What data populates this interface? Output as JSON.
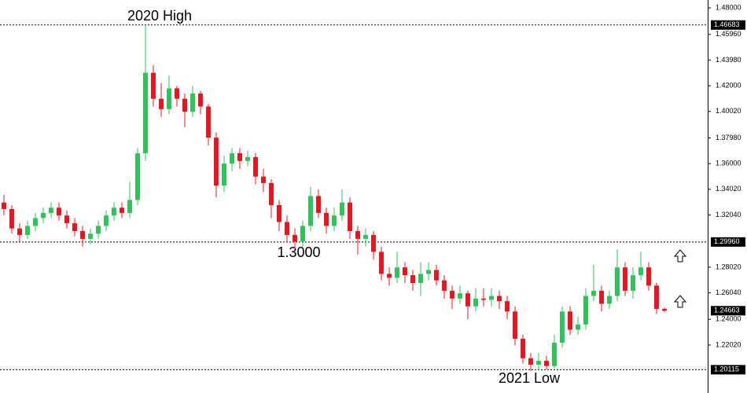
{
  "chart_data": {
    "type": "candlestick",
    "up_color": "#2fc35a",
    "down_color": "#e8141e",
    "ylim": [
      1.1832,
      1.4861
    ],
    "yticks": [
      {
        "value": 1.48,
        "label": "1.48000"
      },
      {
        "value": 1.4596,
        "label": "1.45960"
      },
      {
        "value": 1.4398,
        "label": "1.43980"
      },
      {
        "value": 1.42,
        "label": "1.42000"
      },
      {
        "value": 1.4002,
        "label": "1.40020"
      },
      {
        "value": 1.3798,
        "label": "1.37980"
      },
      {
        "value": 1.36,
        "label": "1.36000"
      },
      {
        "value": 1.3402,
        "label": "1.34020"
      },
      {
        "value": 1.3204,
        "label": "1.32040"
      },
      {
        "value": 1.2802,
        "label": "1.28020"
      },
      {
        "value": 1.2604,
        "label": "1.26040"
      },
      {
        "value": 1.24,
        "label": "1.24000"
      },
      {
        "value": 1.2202,
        "label": "1.22020"
      }
    ],
    "levels": [
      {
        "value": 1.46683,
        "label": "1.46683"
      },
      {
        "value": 1.2996,
        "label": "1.29960"
      },
      {
        "value": 1.20115,
        "label": "1.20115"
      }
    ],
    "last_price": {
      "value": 1.24663,
      "label": "1.24663"
    },
    "annotations": [
      "2020 High",
      "1.3000",
      "2021 Low"
    ],
    "ohlc": [
      [
        1.33,
        1.336,
        1.32,
        1.325
      ],
      [
        1.325,
        1.328,
        1.306,
        1.31
      ],
      [
        1.31,
        1.314,
        1.3,
        1.305
      ],
      [
        1.305,
        1.316,
        1.302,
        1.312
      ],
      [
        1.312,
        1.322,
        1.308,
        1.318
      ],
      [
        1.318,
        1.326,
        1.314,
        1.322
      ],
      [
        1.322,
        1.33,
        1.318,
        1.326
      ],
      [
        1.326,
        1.33,
        1.316,
        1.32
      ],
      [
        1.32,
        1.324,
        1.31,
        1.314
      ],
      [
        1.314,
        1.318,
        1.304,
        1.308
      ],
      [
        1.308,
        1.312,
        1.296,
        1.302
      ],
      [
        1.302,
        1.31,
        1.298,
        1.306
      ],
      [
        1.306,
        1.316,
        1.302,
        1.312
      ],
      [
        1.312,
        1.324,
        1.308,
        1.32
      ],
      [
        1.32,
        1.33,
        1.316,
        1.326
      ],
      [
        1.326,
        1.33,
        1.318,
        1.322
      ],
      [
        1.322,
        1.346,
        1.318,
        1.332
      ],
      [
        1.332,
        1.372,
        1.328,
        1.368
      ],
      [
        1.368,
        1.4668,
        1.362,
        1.43
      ],
      [
        1.43,
        1.436,
        1.404,
        1.41
      ],
      [
        1.41,
        1.422,
        1.396,
        1.402
      ],
      [
        1.402,
        1.428,
        1.398,
        1.418
      ],
      [
        1.418,
        1.42,
        1.404,
        1.41
      ],
      [
        1.41,
        1.414,
        1.388,
        1.4
      ],
      [
        1.4,
        1.42,
        1.396,
        1.414
      ],
      [
        1.414,
        1.416,
        1.398,
        1.404
      ],
      [
        1.404,
        1.406,
        1.374,
        1.38
      ],
      [
        1.38,
        1.384,
        1.334,
        1.343
      ],
      [
        1.343,
        1.366,
        1.338,
        1.36
      ],
      [
        1.36,
        1.372,
        1.354,
        1.368
      ],
      [
        1.368,
        1.372,
        1.356,
        1.362
      ],
      [
        1.362,
        1.37,
        1.358,
        1.365
      ],
      [
        1.365,
        1.368,
        1.344,
        1.35
      ],
      [
        1.35,
        1.356,
        1.338,
        1.345
      ],
      [
        1.345,
        1.348,
        1.318,
        1.328
      ],
      [
        1.328,
        1.332,
        1.308,
        1.315
      ],
      [
        1.315,
        1.32,
        1.3,
        1.305
      ],
      [
        1.305,
        1.31,
        1.294,
        1.3
      ],
      [
        1.3,
        1.316,
        1.296,
        1.312
      ],
      [
        1.312,
        1.342,
        1.308,
        1.335
      ],
      [
        1.335,
        1.34,
        1.318,
        1.322
      ],
      [
        1.322,
        1.326,
        1.306,
        1.312
      ],
      [
        1.312,
        1.326,
        1.308,
        1.32
      ],
      [
        1.32,
        1.34,
        1.316,
        1.33
      ],
      [
        1.33,
        1.334,
        1.302,
        1.308
      ],
      [
        1.308,
        1.312,
        1.29,
        1.302
      ],
      [
        1.302,
        1.31,
        1.296,
        1.305
      ],
      [
        1.305,
        1.308,
        1.286,
        1.292
      ],
      [
        1.292,
        1.296,
        1.27,
        1.275
      ],
      [
        1.275,
        1.28,
        1.266,
        1.272
      ],
      [
        1.272,
        1.292,
        1.268,
        1.28
      ],
      [
        1.28,
        1.284,
        1.268,
        1.274
      ],
      [
        1.274,
        1.278,
        1.262,
        1.268
      ],
      [
        1.268,
        1.284,
        1.258,
        1.275
      ],
      [
        1.275,
        1.284,
        1.27,
        1.278
      ],
      [
        1.278,
        1.282,
        1.266,
        1.27
      ],
      [
        1.27,
        1.274,
        1.256,
        1.262
      ],
      [
        1.262,
        1.266,
        1.248,
        1.256
      ],
      [
        1.256,
        1.266,
        1.252,
        1.26
      ],
      [
        1.26,
        1.262,
        1.24,
        1.25
      ],
      [
        1.25,
        1.264,
        1.246,
        1.256
      ],
      [
        1.256,
        1.264,
        1.25,
        1.255
      ],
      [
        1.255,
        1.264,
        1.25,
        1.258
      ],
      [
        1.258,
        1.262,
        1.248,
        1.254
      ],
      [
        1.254,
        1.258,
        1.24,
        1.246
      ],
      [
        1.246,
        1.25,
        1.22,
        1.225
      ],
      [
        1.225,
        1.228,
        1.206,
        1.21
      ],
      [
        1.21,
        1.214,
        1.2,
        1.205
      ],
      [
        1.205,
        1.214,
        1.201,
        1.208
      ],
      [
        1.208,
        1.212,
        1.2012,
        1.204
      ],
      [
        1.204,
        1.228,
        1.202,
        1.222
      ],
      [
        1.222,
        1.25,
        1.218,
        1.246
      ],
      [
        1.246,
        1.25,
        1.228,
        1.232
      ],
      [
        1.232,
        1.242,
        1.228,
        1.236
      ],
      [
        1.236,
        1.264,
        1.232,
        1.258
      ],
      [
        1.258,
        1.282,
        1.254,
        1.262
      ],
      [
        1.262,
        1.266,
        1.246,
        1.252
      ],
      [
        1.252,
        1.262,
        1.248,
        1.258
      ],
      [
        1.258,
        1.294,
        1.254,
        1.28
      ],
      [
        1.28,
        1.284,
        1.258,
        1.262
      ],
      [
        1.262,
        1.28,
        1.256,
        1.274
      ],
      [
        1.274,
        1.292,
        1.27,
        1.28
      ],
      [
        1.28,
        1.284,
        1.262,
        1.266
      ],
      [
        1.266,
        1.268,
        1.244,
        1.248
      ],
      [
        1.248,
        1.249,
        1.2455,
        1.2466
      ]
    ]
  }
}
